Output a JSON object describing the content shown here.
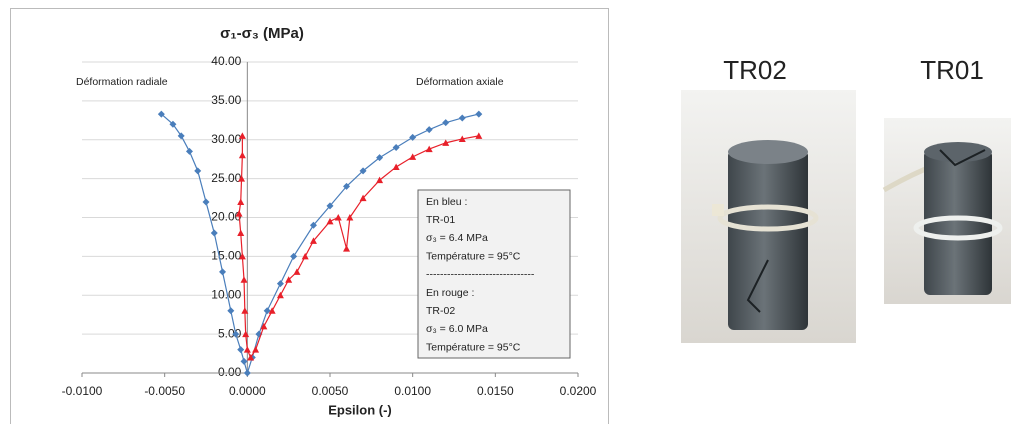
{
  "chart_data": {
    "type": "line",
    "title": "σ₁-σ₃ (MPa)",
    "x_label": "Epsilon (-)",
    "annotations": [
      "Déformation radiale",
      "Déformation axiale"
    ],
    "note_box": [
      "En bleu :",
      "TR-01",
      "σ₃ = 6.4 MPa",
      "Température  = 95°C",
      "-------------------------------",
      "En rouge :",
      "TR-02",
      "σ₃ = 6.0 MPa",
      "Température  = 95°C"
    ],
    "xlim": [
      -0.01,
      0.02
    ],
    "xticks": [
      {
        "value": -0.01,
        "label": "-0.0100"
      },
      {
        "value": -0.005,
        "label": "-0.0050"
      },
      {
        "value": 0,
        "label": "0.0000"
      },
      {
        "value": 0.005,
        "label": "0.0050"
      },
      {
        "value": 0.01,
        "label": "0.0100"
      },
      {
        "value": 0.015,
        "label": "0.0150"
      },
      {
        "value": 0.02,
        "label": "0.0200"
      }
    ],
    "ylim": [
      0,
      40
    ],
    "yticks": [
      {
        "value": 0,
        "label": "0.00"
      },
      {
        "value": 5,
        "label": "5.00"
      },
      {
        "value": 10,
        "label": "10.00"
      },
      {
        "value": 15,
        "label": "15.00"
      },
      {
        "value": 20,
        "label": "20.00"
      },
      {
        "value": 25,
        "label": "25.00"
      },
      {
        "value": 30,
        "label": "30.00"
      },
      {
        "value": 35,
        "label": "35.00"
      },
      {
        "value": 40,
        "label": "40.00"
      }
    ],
    "grid": true,
    "series": [
      {
        "color": "#4a7ebb",
        "marker": "diamond",
        "x": [
          -0.0052,
          -0.0045,
          -0.004,
          -0.0035,
          -0.003,
          -0.0025,
          -0.002,
          -0.0015,
          -0.001,
          -0.0007,
          -0.0004,
          -0.0002,
          0,
          0.0003,
          0.0007,
          0.0012,
          0.002,
          0.0028,
          0.004,
          0.005,
          0.006,
          0.007,
          0.008,
          0.009,
          0.01,
          0.011,
          0.012,
          0.013,
          0.014
        ],
        "values": [
          33.3,
          32,
          30.5,
          28.5,
          26,
          22,
          18,
          13,
          8,
          5,
          3,
          1.5,
          0,
          2,
          5,
          8,
          11.5,
          15,
          19,
          21.5,
          24,
          26,
          27.7,
          29,
          30.3,
          31.3,
          32.2,
          32.8,
          33.3
        ]
      },
      {
        "color": "#e8202a",
        "marker": "triangle",
        "x": [
          -0.0003,
          -0.0003,
          -0.00035,
          -0.0004,
          -0.0005,
          -0.0004,
          -0.0003,
          -0.0002,
          -0.00015,
          -0.0001,
          0,
          0.0002,
          0.0005,
          0.001,
          0.0015,
          0.002,
          0.0025,
          0.003,
          0.0035,
          0.004,
          0.005,
          0.0055,
          0.006,
          0.0062,
          0.007,
          0.008,
          0.009,
          0.01,
          0.011,
          0.012,
          0.013,
          0.014
        ],
        "values": [
          30.5,
          28,
          25,
          22,
          20.5,
          18,
          15,
          12,
          8,
          5,
          3,
          2,
          3,
          6,
          8,
          10,
          12,
          13,
          15,
          17,
          19.5,
          20,
          16,
          20,
          22.5,
          24.8,
          26.5,
          27.8,
          28.8,
          29.6,
          30.1,
          30.5
        ]
      }
    ]
  },
  "photos": [
    {
      "label": "TR02"
    },
    {
      "label": "TR01"
    }
  ]
}
